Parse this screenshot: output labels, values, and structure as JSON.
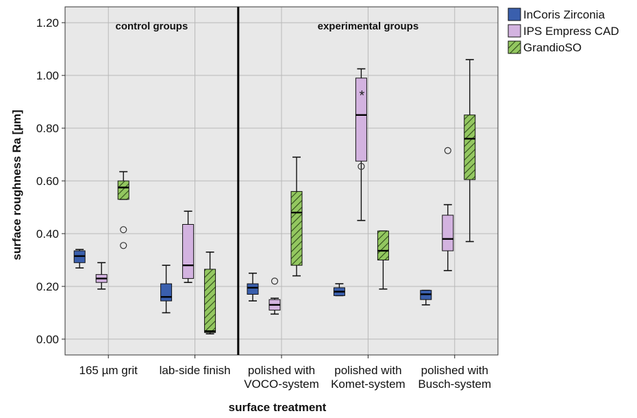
{
  "chart_data": {
    "type": "boxplot",
    "xlabel": "surface treatment",
    "ylabel": "surface roughness Ra [µm]",
    "ylim": [
      -0.06,
      1.26
    ],
    "yticks": [
      0.0,
      0.2,
      0.4,
      0.6,
      0.8,
      1.0,
      1.2
    ],
    "ytick_labels": [
      "0.00",
      "0.20",
      "0.40",
      "0.60",
      "0.80",
      "1.00",
      "1.20"
    ],
    "grid": true,
    "legend_position": "top-right, outside plot",
    "categories": [
      {
        "label_lines": [
          "165 µm grit"
        ]
      },
      {
        "label_lines": [
          "lab-side finish"
        ]
      },
      {
        "label_lines": [
          "polished with",
          "VOCO-system"
        ]
      },
      {
        "label_lines": [
          "polished with",
          "Komet-system"
        ]
      },
      {
        "label_lines": [
          "polished with",
          "Busch-system"
        ]
      }
    ],
    "group_dividers": [
      {
        "after_category": 1,
        "left_label": "control groups",
        "right_label": "experimental groups"
      }
    ],
    "series": [
      {
        "name": "InCoris Zirconia",
        "color": "#3a5fad",
        "hatch": false,
        "boxes": [
          {
            "whisker_low": 0.27,
            "q1": 0.29,
            "median": 0.315,
            "q3": 0.335,
            "whisker_high": 0.34,
            "outliers": [],
            "extremes": []
          },
          {
            "whisker_low": 0.1,
            "q1": 0.145,
            "median": 0.16,
            "q3": 0.21,
            "whisker_high": 0.28,
            "outliers": [],
            "extremes": []
          },
          {
            "whisker_low": 0.145,
            "q1": 0.17,
            "median": 0.195,
            "q3": 0.21,
            "whisker_high": 0.25,
            "outliers": [],
            "extremes": []
          },
          {
            "whisker_low": 0.165,
            "q1": 0.165,
            "median": 0.18,
            "q3": 0.195,
            "whisker_high": 0.21,
            "outliers": [],
            "extremes": []
          },
          {
            "whisker_low": 0.13,
            "q1": 0.15,
            "median": 0.17,
            "q3": 0.185,
            "whisker_high": 0.185,
            "outliers": [],
            "extremes": []
          }
        ]
      },
      {
        "name": "IPS Empress CAD",
        "color": "#d3b3e0",
        "hatch": false,
        "boxes": [
          {
            "whisker_low": 0.19,
            "q1": 0.215,
            "median": 0.23,
            "q3": 0.245,
            "whisker_high": 0.29,
            "outliers": [],
            "extremes": []
          },
          {
            "whisker_low": 0.215,
            "q1": 0.23,
            "median": 0.28,
            "q3": 0.435,
            "whisker_high": 0.485,
            "outliers": [],
            "extremes": []
          },
          {
            "whisker_low": 0.095,
            "q1": 0.11,
            "median": 0.13,
            "q3": 0.15,
            "whisker_high": 0.155,
            "outliers": [
              0.22
            ],
            "extremes": []
          },
          {
            "whisker_low": 0.45,
            "q1": 0.675,
            "median": 0.85,
            "q3": 0.99,
            "whisker_high": 1.025,
            "outliers": [
              0.655
            ],
            "extremes": [
              0.93
            ]
          },
          {
            "whisker_low": 0.26,
            "q1": 0.335,
            "median": 0.38,
            "q3": 0.47,
            "whisker_high": 0.51,
            "outliers": [
              0.715
            ],
            "extremes": []
          }
        ]
      },
      {
        "name": "GrandioSO",
        "color": "#93c760",
        "hatch": true,
        "boxes": [
          {
            "whisker_low": 0.53,
            "q1": 0.53,
            "median": 0.575,
            "q3": 0.6,
            "whisker_high": 0.635,
            "outliers": [
              0.415,
              0.355
            ],
            "extremes": []
          },
          {
            "whisker_low": 0.02,
            "q1": 0.025,
            "median": 0.03,
            "q3": 0.265,
            "whisker_high": 0.33,
            "outliers": [],
            "extremes": []
          },
          {
            "whisker_low": 0.24,
            "q1": 0.28,
            "median": 0.48,
            "q3": 0.56,
            "whisker_high": 0.69,
            "outliers": [],
            "extremes": []
          },
          {
            "whisker_low": 0.19,
            "q1": 0.3,
            "median": 0.335,
            "q3": 0.41,
            "whisker_high": 0.41,
            "outliers": [],
            "extremes": []
          },
          {
            "whisker_low": 0.37,
            "q1": 0.605,
            "median": 0.76,
            "q3": 0.85,
            "whisker_high": 1.06,
            "outliers": [],
            "extremes": []
          }
        ]
      }
    ]
  }
}
